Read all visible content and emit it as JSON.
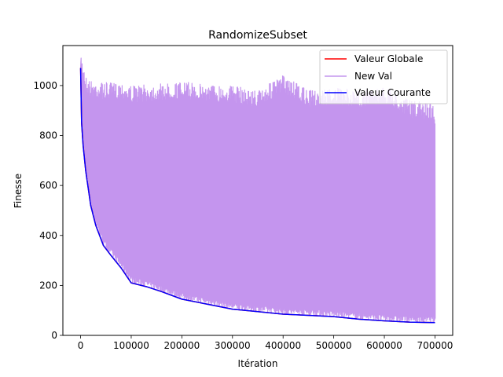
{
  "chart_data": {
    "type": "line",
    "title": "RandomizeSubset",
    "xlabel": "Itération",
    "ylabel": "Finesse",
    "xlim": [
      -35000,
      735000
    ],
    "ylim": [
      0,
      1160
    ],
    "xticks": [
      0,
      100000,
      200000,
      300000,
      400000,
      500000,
      600000,
      700000
    ],
    "xtick_labels": [
      "0",
      "100000",
      "200000",
      "300000",
      "400000",
      "500000",
      "600000",
      "700000"
    ],
    "yticks": [
      0,
      200,
      400,
      600,
      800,
      1000
    ],
    "ytick_labels": [
      "0",
      "200",
      "400",
      "600",
      "800",
      "1000"
    ],
    "grid": false,
    "legend_position": "top-right",
    "series": [
      {
        "name": "Valeur Globale",
        "color": "#ff0000",
        "x": [
          0,
          2000,
          5000,
          10000,
          20000,
          30000,
          45000,
          60000,
          80000,
          100000,
          130000,
          160000,
          200000,
          250000,
          300000,
          350000,
          400000,
          450000,
          500000,
          550000,
          600000,
          650000,
          700000
        ],
        "values": [
          1070,
          850,
          760,
          660,
          520,
          440,
          360,
          320,
          270,
          210,
          195,
          175,
          145,
          125,
          105,
          95,
          85,
          80,
          75,
          65,
          58,
          53,
          51
        ]
      },
      {
        "name": "New Val",
        "color": "#c495ee",
        "band_upper_x": [
          0,
          1000,
          3000,
          6000,
          10000,
          20000,
          40000,
          60000,
          80000,
          100000,
          150000,
          200000,
          250000,
          300000,
          350000,
          400000,
          450000,
          500000,
          550000,
          600000,
          650000,
          700000
        ],
        "band_upper_values": [
          1060,
          1130,
          1110,
          1090,
          1040,
          1020,
          1015,
          1010,
          1015,
          1000,
          1005,
          1015,
          1005,
          1000,
          980,
          1040,
          980,
          990,
          980,
          995,
          940,
          930
        ],
        "end_value": 880
      },
      {
        "name": "Valeur Courante",
        "color": "#0000ff",
        "x": [
          0,
          2000,
          5000,
          10000,
          20000,
          30000,
          45000,
          60000,
          80000,
          100000,
          130000,
          160000,
          200000,
          250000,
          300000,
          350000,
          400000,
          450000,
          500000,
          550000,
          600000,
          650000,
          700000
        ],
        "values": [
          1070,
          850,
          760,
          660,
          520,
          440,
          360,
          320,
          270,
          210,
          195,
          175,
          145,
          125,
          105,
          95,
          85,
          80,
          75,
          65,
          58,
          53,
          51
        ]
      }
    ]
  }
}
